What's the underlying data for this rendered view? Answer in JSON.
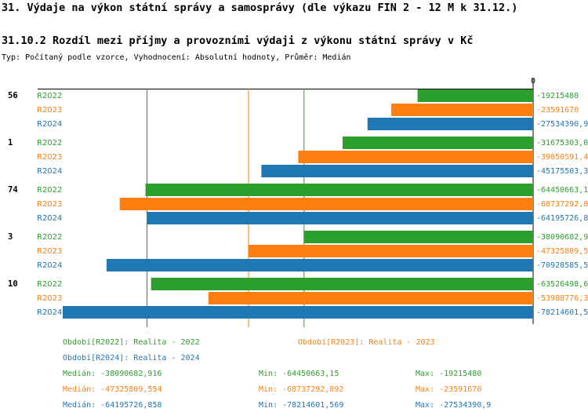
{
  "chart_data": {
    "type": "hbar",
    "title": "31. Výdaje na výkon státní správy a samosprávy (dle výkazu FIN 2 - 12 M k 31.12.)",
    "subtitle": "31.10.2 Rozdíl mezi příjmy a provozními výdaji z výkonu státní správy v Kč",
    "note": "Typ: Počítaný podle vzorce, Vyhodnocení: Absolutní hodnoty, Průměr: Medián",
    "categories": [
      "56",
      "1",
      "74",
      "3",
      "10"
    ],
    "xlim": [
      -78214601.5,
      0
    ],
    "xticks": [
      0
    ],
    "series": [
      {
        "name": "R2022",
        "color": "#2ca02c",
        "values": [
          -19215480,
          -31675303.0,
          -64450663.1,
          -38090682.9,
          -63526498.6
        ],
        "value_labels": [
          "-19215480",
          "-31675303,0",
          "-64450663,1",
          "-38090682,9",
          "-63526498,6"
        ],
        "median": -38090682.916,
        "legend": "Období[R2022]: Realita - 2022",
        "stats": [
          "Medián: -38090682,916",
          "Min: -64450663,15",
          "Max: -19215480"
        ]
      },
      {
        "name": "R2023",
        "color": "#ff7f0e",
        "values": [
          -23591670,
          -39050591.4,
          -68737292.8,
          -47325809.5,
          -53988776.3
        ],
        "value_labels": [
          "-23591670",
          "-39050591,4",
          "-68737292,8",
          "-47325809,5",
          "-53988776,3"
        ],
        "median": -47325809.554,
        "legend": "Období[R2023]: Realita - 2023",
        "stats": [
          "Medián: -47325809,554",
          "Min: -68737292,892",
          "Max: -23591670"
        ]
      },
      {
        "name": "R2024",
        "color": "#1f77b4",
        "values": [
          -27534390.9,
          -45175503.3,
          -64195726.8,
          -70928585.5,
          -78214601.5
        ],
        "value_labels": [
          "-27534390,9",
          "-45175503,3",
          "-64195726,8",
          "-70928585,5",
          "-78214601,5"
        ],
        "median": -64195726.858,
        "legend": "Období[R2024]: Realita - 2024",
        "stats": [
          "Medián: -64195726,858",
          "Min: -78214601,569",
          "Max: -27534390,9"
        ]
      }
    ]
  }
}
